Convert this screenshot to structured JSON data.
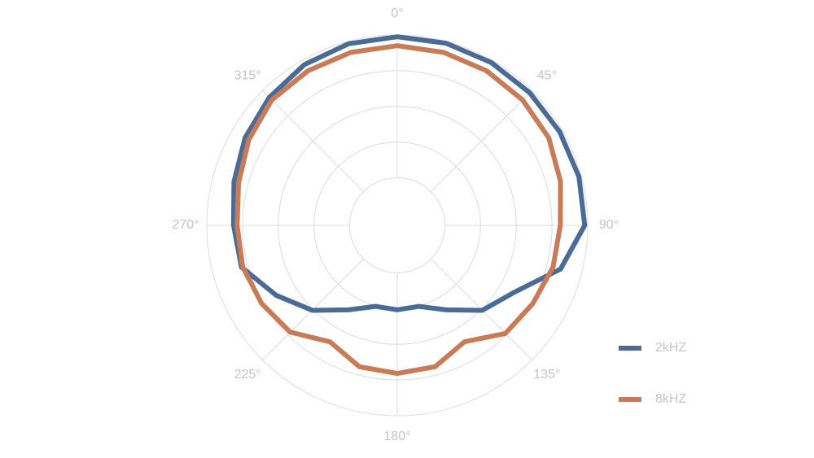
{
  "chart_data": {
    "type": "polar",
    "theta": [
      0,
      15,
      30,
      45,
      60,
      75,
      90,
      105,
      120,
      135,
      150,
      165,
      180,
      195,
      210,
      225,
      240,
      255,
      270,
      285,
      300,
      315,
      330,
      345
    ],
    "rlim": [
      -32,
      0
    ],
    "rticks": [
      -24,
      -18,
      -12,
      -6,
      0
    ],
    "thetaticks": [
      {
        "value": 0,
        "label": "0°"
      },
      {
        "value": 45,
        "label": "45°"
      },
      {
        "value": 90,
        "label": "90°"
      },
      {
        "value": 135,
        "label": "135°"
      },
      {
        "value": 180,
        "label": "180°"
      },
      {
        "value": 225,
        "label": "225°"
      },
      {
        "value": 270,
        "label": "270°"
      },
      {
        "value": 315,
        "label": "315°"
      }
    ],
    "grid": true,
    "legend": "right",
    "series": [
      {
        "name": "2kHZ",
        "color": "#4a6b96",
        "values": [
          -0.3,
          -0.3,
          -0.4,
          -0.5,
          -0.5,
          -0.4,
          -0.5,
          -3.6,
          -9.4,
          -11.8,
          -15.6,
          -17.9,
          -17.8,
          -17.9,
          -15.6,
          -11.8,
          -8.5,
          -4.9,
          -4.5,
          -3.6,
          -2.5,
          -1.6,
          -0.8,
          -0.4
        ]
      },
      {
        "name": "8kHZ",
        "color": "#c97b58",
        "values": [
          -1.8,
          -1.9,
          -2.0,
          -2.2,
          -2.6,
          -3.6,
          -4.6,
          -4.9,
          -5.7,
          -6.3,
          -9.4,
          -7.4,
          -7.1,
          -7.4,
          -9.4,
          -6.6,
          -5.7,
          -5.1,
          -5.1,
          -4.4,
          -3.2,
          -2.2,
          -2.0,
          -1.9
        ]
      }
    ]
  }
}
